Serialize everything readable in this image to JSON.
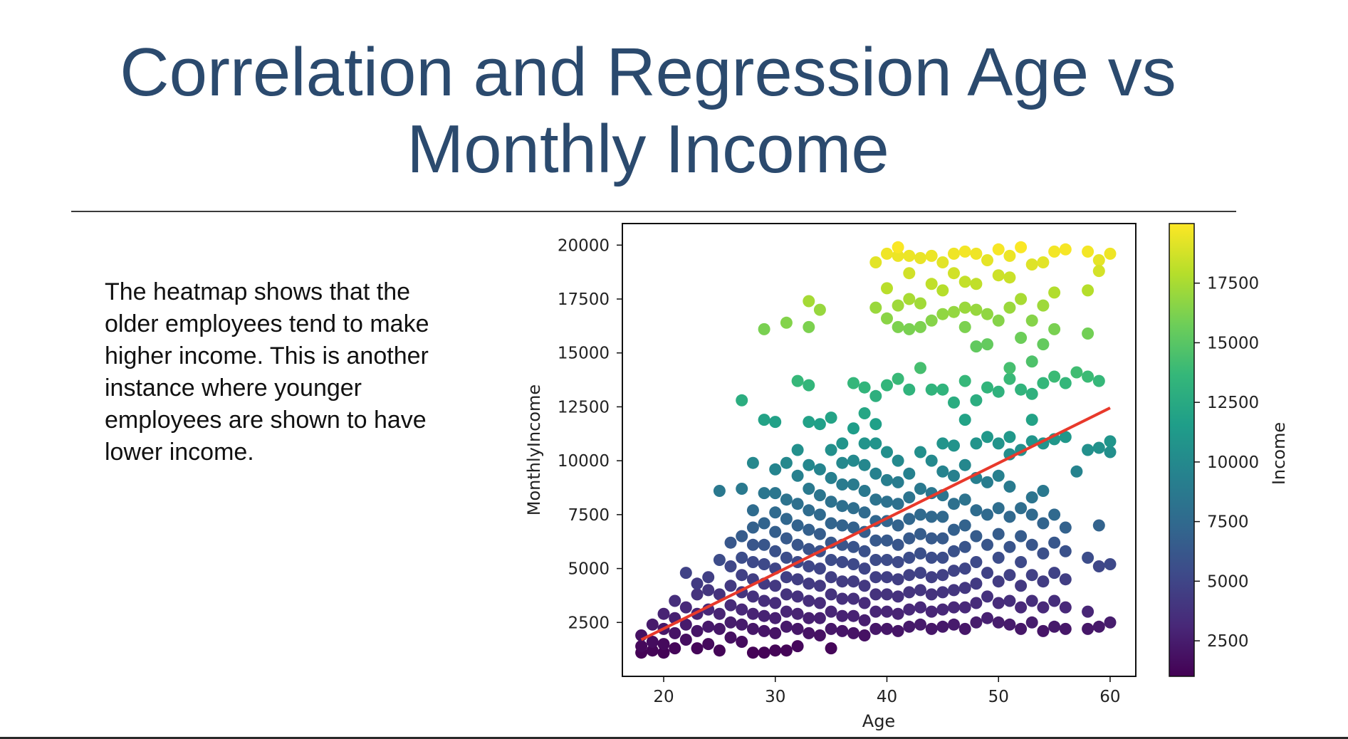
{
  "slide": {
    "title": "Correlation and Regression Age vs Monthly Income",
    "body": "The heatmap shows that the older employees tend to make higher income. This is another instance where younger employees are shown to have lower income."
  },
  "chart_data": {
    "type": "scatter",
    "xlabel": "Age",
    "ylabel": "MonthlyIncome",
    "colorbar_label": "Income",
    "xlim": [
      16.3,
      62.3
    ],
    "ylim": [
      0,
      21000
    ],
    "xticks": [
      20,
      30,
      40,
      50,
      60
    ],
    "yticks": [
      2500,
      5000,
      7500,
      10000,
      12500,
      15000,
      17500,
      20000
    ],
    "colorbar_range": [
      1009,
      19999
    ],
    "colorbar_ticks": [
      2500,
      5000,
      7500,
      10000,
      12500,
      15000,
      17500
    ],
    "colormap": "viridis",
    "colormap_stops": [
      "#440154",
      "#482878",
      "#3e4989",
      "#31688e",
      "#26828e",
      "#1f9e89",
      "#35b779",
      "#6ece58",
      "#b5de2b",
      "#fde725"
    ],
    "regression_line": {
      "x": [
        18,
        60
      ],
      "y": [
        1700,
        12450
      ],
      "color": "#e8392b"
    },
    "points": [
      [
        18,
        1100
      ],
      [
        18,
        1400
      ],
      [
        18,
        1900
      ],
      [
        19,
        1200
      ],
      [
        19,
        1600
      ],
      [
        19,
        2400
      ],
      [
        20,
        1100
      ],
      [
        20,
        1500
      ],
      [
        20,
        2200
      ],
      [
        20,
        2900
      ],
      [
        21,
        1300
      ],
      [
        21,
        2000
      ],
      [
        21,
        2700
      ],
      [
        21,
        3500
      ],
      [
        22,
        1700
      ],
      [
        22,
        2400
      ],
      [
        22,
        3200
      ],
      [
        22,
        4800
      ],
      [
        23,
        1300
      ],
      [
        23,
        2100
      ],
      [
        23,
        2900
      ],
      [
        23,
        3800
      ],
      [
        23,
        4300
      ],
      [
        24,
        1500
      ],
      [
        24,
        2300
      ],
      [
        24,
        3100
      ],
      [
        24,
        4000
      ],
      [
        24,
        4600
      ],
      [
        25,
        1200
      ],
      [
        25,
        2200
      ],
      [
        25,
        2900
      ],
      [
        25,
        3800
      ],
      [
        25,
        5400
      ],
      [
        25,
        8600
      ],
      [
        26,
        1800
      ],
      [
        26,
        2500
      ],
      [
        26,
        3300
      ],
      [
        26,
        4200
      ],
      [
        26,
        5100
      ],
      [
        26,
        6200
      ],
      [
        27,
        1600
      ],
      [
        27,
        2400
      ],
      [
        27,
        3100
      ],
      [
        27,
        3900
      ],
      [
        27,
        4700
      ],
      [
        27,
        5500
      ],
      [
        27,
        6500
      ],
      [
        27,
        8700
      ],
      [
        27,
        12800
      ],
      [
        28,
        1100
      ],
      [
        28,
        2200
      ],
      [
        28,
        2900
      ],
      [
        28,
        3700
      ],
      [
        28,
        4500
      ],
      [
        28,
        5300
      ],
      [
        28,
        6100
      ],
      [
        28,
        6900
      ],
      [
        28,
        7700
      ],
      [
        28,
        9900
      ],
      [
        29,
        1100
      ],
      [
        29,
        2100
      ],
      [
        29,
        2800
      ],
      [
        29,
        3500
      ],
      [
        29,
        4300
      ],
      [
        29,
        5200
      ],
      [
        29,
        6100
      ],
      [
        29,
        7100
      ],
      [
        29,
        8500
      ],
      [
        29,
        11900
      ],
      [
        29,
        16100
      ],
      [
        30,
        1200
      ],
      [
        30,
        2000
      ],
      [
        30,
        2700
      ],
      [
        30,
        3400
      ],
      [
        30,
        4200
      ],
      [
        30,
        5000
      ],
      [
        30,
        5800
      ],
      [
        30,
        6700
      ],
      [
        30,
        7600
      ],
      [
        30,
        8500
      ],
      [
        30,
        9600
      ],
      [
        30,
        11800
      ],
      [
        31,
        1200
      ],
      [
        31,
        2300
      ],
      [
        31,
        3000
      ],
      [
        31,
        3800
      ],
      [
        31,
        4600
      ],
      [
        31,
        5500
      ],
      [
        31,
        6400
      ],
      [
        31,
        7300
      ],
      [
        31,
        8200
      ],
      [
        31,
        9900
      ],
      [
        31,
        16400
      ],
      [
        32,
        1400
      ],
      [
        32,
        2200
      ],
      [
        32,
        2900
      ],
      [
        32,
        3700
      ],
      [
        32,
        4500
      ],
      [
        32,
        5300
      ],
      [
        32,
        6100
      ],
      [
        32,
        7000
      ],
      [
        32,
        8000
      ],
      [
        32,
        9300
      ],
      [
        32,
        10500
      ],
      [
        32,
        13700
      ],
      [
        33,
        2000
      ],
      [
        33,
        2700
      ],
      [
        33,
        3500
      ],
      [
        33,
        4300
      ],
      [
        33,
        5100
      ],
      [
        33,
        5900
      ],
      [
        33,
        6800
      ],
      [
        33,
        7700
      ],
      [
        33,
        8700
      ],
      [
        33,
        9800
      ],
      [
        33,
        11800
      ],
      [
        33,
        13500
      ],
      [
        33,
        16200
      ],
      [
        33,
        17400
      ],
      [
        34,
        1900
      ],
      [
        34,
        2700
      ],
      [
        34,
        3400
      ],
      [
        34,
        4200
      ],
      [
        34,
        5000
      ],
      [
        34,
        5800
      ],
      [
        34,
        6600
      ],
      [
        34,
        7500
      ],
      [
        34,
        8400
      ],
      [
        34,
        9600
      ],
      [
        34,
        11700
      ],
      [
        34,
        17000
      ],
      [
        35,
        1300
      ],
      [
        35,
        2200
      ],
      [
        35,
        3000
      ],
      [
        35,
        3800
      ],
      [
        35,
        4600
      ],
      [
        35,
        5400
      ],
      [
        35,
        6200
      ],
      [
        35,
        7100
      ],
      [
        35,
        8100
      ],
      [
        35,
        9200
      ],
      [
        35,
        10500
      ],
      [
        35,
        12000
      ],
      [
        36,
        2100
      ],
      [
        36,
        2800
      ],
      [
        36,
        3600
      ],
      [
        36,
        4400
      ],
      [
        36,
        5300
      ],
      [
        36,
        6100
      ],
      [
        36,
        7000
      ],
      [
        36,
        7900
      ],
      [
        36,
        8900
      ],
      [
        36,
        9900
      ],
      [
        36,
        10800
      ],
      [
        37,
        2000
      ],
      [
        37,
        2800
      ],
      [
        37,
        3600
      ],
      [
        37,
        4400
      ],
      [
        37,
        5200
      ],
      [
        37,
        6000
      ],
      [
        37,
        6900
      ],
      [
        37,
        7800
      ],
      [
        37,
        8900
      ],
      [
        37,
        10000
      ],
      [
        37,
        11500
      ],
      [
        37,
        13600
      ],
      [
        38,
        1900
      ],
      [
        38,
        2600
      ],
      [
        38,
        3400
      ],
      [
        38,
        4200
      ],
      [
        38,
        5000
      ],
      [
        38,
        5800
      ],
      [
        38,
        6700
      ],
      [
        38,
        7600
      ],
      [
        38,
        8600
      ],
      [
        38,
        9800
      ],
      [
        38,
        10800
      ],
      [
        38,
        12200
      ],
      [
        38,
        13400
      ],
      [
        39,
        2200
      ],
      [
        39,
        3000
      ],
      [
        39,
        3800
      ],
      [
        39,
        4600
      ],
      [
        39,
        5400
      ],
      [
        39,
        6300
      ],
      [
        39,
        7200
      ],
      [
        39,
        8200
      ],
      [
        39,
        9400
      ],
      [
        39,
        10800
      ],
      [
        39,
        11700
      ],
      [
        39,
        13000
      ],
      [
        39,
        17100
      ],
      [
        39,
        19200
      ],
      [
        40,
        2200
      ],
      [
        40,
        3000
      ],
      [
        40,
        3800
      ],
      [
        40,
        4600
      ],
      [
        40,
        5400
      ],
      [
        40,
        6300
      ],
      [
        40,
        7200
      ],
      [
        40,
        8100
      ],
      [
        40,
        9100
      ],
      [
        40,
        10400
      ],
      [
        40,
        13500
      ],
      [
        40,
        16600
      ],
      [
        40,
        18000
      ],
      [
        40,
        19600
      ],
      [
        41,
        2100
      ],
      [
        41,
        2900
      ],
      [
        41,
        3700
      ],
      [
        41,
        4500
      ],
      [
        41,
        5300
      ],
      [
        41,
        6100
      ],
      [
        41,
        7000
      ],
      [
        41,
        8000
      ],
      [
        41,
        9000
      ],
      [
        41,
        10000
      ],
      [
        41,
        13800
      ],
      [
        41,
        16200
      ],
      [
        41,
        17200
      ],
      [
        41,
        19500
      ],
      [
        41,
        19900
      ],
      [
        42,
        2300
      ],
      [
        42,
        3100
      ],
      [
        42,
        3900
      ],
      [
        42,
        4700
      ],
      [
        42,
        5500
      ],
      [
        42,
        6400
      ],
      [
        42,
        7300
      ],
      [
        42,
        8300
      ],
      [
        42,
        9400
      ],
      [
        42,
        13300
      ],
      [
        42,
        16100
      ],
      [
        42,
        17500
      ],
      [
        42,
        18700
      ],
      [
        42,
        19500
      ],
      [
        43,
        2400
      ],
      [
        43,
        3200
      ],
      [
        43,
        4000
      ],
      [
        43,
        4800
      ],
      [
        43,
        5700
      ],
      [
        43,
        6600
      ],
      [
        43,
        7500
      ],
      [
        43,
        8700
      ],
      [
        43,
        10400
      ],
      [
        43,
        14300
      ],
      [
        43,
        16200
      ],
      [
        43,
        17300
      ],
      [
        43,
        19400
      ],
      [
        44,
        2200
      ],
      [
        44,
        3000
      ],
      [
        44,
        3800
      ],
      [
        44,
        4600
      ],
      [
        44,
        5500
      ],
      [
        44,
        6400
      ],
      [
        44,
        7400
      ],
      [
        44,
        8500
      ],
      [
        44,
        10000
      ],
      [
        44,
        13300
      ],
      [
        44,
        16500
      ],
      [
        44,
        18200
      ],
      [
        44,
        19500
      ],
      [
        45,
        2300
      ],
      [
        45,
        3100
      ],
      [
        45,
        3900
      ],
      [
        45,
        4700
      ],
      [
        45,
        5500
      ],
      [
        45,
        6400
      ],
      [
        45,
        7400
      ],
      [
        45,
        8400
      ],
      [
        45,
        9500
      ],
      [
        45,
        10800
      ],
      [
        45,
        13300
      ],
      [
        45,
        16800
      ],
      [
        45,
        17900
      ],
      [
        45,
        19200
      ],
      [
        46,
        2400
      ],
      [
        46,
        3200
      ],
      [
        46,
        4000
      ],
      [
        46,
        4900
      ],
      [
        46,
        5800
      ],
      [
        46,
        6800
      ],
      [
        46,
        8000
      ],
      [
        46,
        9300
      ],
      [
        46,
        10700
      ],
      [
        46,
        12700
      ],
      [
        46,
        16900
      ],
      [
        46,
        18700
      ],
      [
        46,
        19600
      ],
      [
        47,
        2200
      ],
      [
        47,
        3200
      ],
      [
        47,
        4100
      ],
      [
        47,
        5000
      ],
      [
        47,
        6000
      ],
      [
        47,
        7000
      ],
      [
        47,
        8200
      ],
      [
        47,
        9800
      ],
      [
        47,
        11900
      ],
      [
        47,
        13700
      ],
      [
        47,
        16200
      ],
      [
        47,
        17100
      ],
      [
        47,
        18300
      ],
      [
        47,
        19700
      ],
      [
        48,
        2500
      ],
      [
        48,
        3400
      ],
      [
        48,
        4300
      ],
      [
        48,
        5300
      ],
      [
        48,
        6500
      ],
      [
        48,
        7700
      ],
      [
        48,
        9200
      ],
      [
        48,
        10800
      ],
      [
        48,
        12800
      ],
      [
        48,
        15300
      ],
      [
        48,
        17000
      ],
      [
        48,
        18200
      ],
      [
        48,
        19600
      ],
      [
        49,
        2700
      ],
      [
        49,
        3700
      ],
      [
        49,
        4800
      ],
      [
        49,
        6100
      ],
      [
        49,
        7500
      ],
      [
        49,
        9000
      ],
      [
        49,
        11100
      ],
      [
        49,
        13400
      ],
      [
        49,
        15400
      ],
      [
        49,
        16800
      ],
      [
        49,
        19300
      ],
      [
        50,
        2500
      ],
      [
        50,
        3400
      ],
      [
        50,
        4400
      ],
      [
        50,
        5500
      ],
      [
        50,
        6600
      ],
      [
        50,
        7800
      ],
      [
        50,
        9300
      ],
      [
        50,
        10800
      ],
      [
        50,
        13200
      ],
      [
        50,
        16500
      ],
      [
        50,
        18600
      ],
      [
        50,
        19800
      ],
      [
        51,
        2400
      ],
      [
        51,
        3500
      ],
      [
        51,
        4700
      ],
      [
        51,
        6000
      ],
      [
        51,
        7400
      ],
      [
        51,
        8800
      ],
      [
        51,
        10300
      ],
      [
        51,
        11100
      ],
      [
        51,
        13800
      ],
      [
        51,
        14300
      ],
      [
        51,
        17100
      ],
      [
        51,
        18500
      ],
      [
        51,
        19500
      ],
      [
        52,
        2200
      ],
      [
        52,
        3200
      ],
      [
        52,
        4200
      ],
      [
        52,
        5300
      ],
      [
        52,
        6500
      ],
      [
        52,
        7800
      ],
      [
        52,
        10500
      ],
      [
        52,
        13300
      ],
      [
        52,
        15700
      ],
      [
        52,
        17500
      ],
      [
        52,
        19900
      ],
      [
        53,
        2500
      ],
      [
        53,
        3500
      ],
      [
        53,
        4700
      ],
      [
        53,
        6100
      ],
      [
        53,
        7500
      ],
      [
        53,
        8300
      ],
      [
        53,
        10900
      ],
      [
        53,
        11900
      ],
      [
        53,
        13100
      ],
      [
        53,
        14600
      ],
      [
        53,
        16500
      ],
      [
        53,
        19100
      ],
      [
        54,
        2100
      ],
      [
        54,
        3200
      ],
      [
        54,
        4400
      ],
      [
        54,
        5700
      ],
      [
        54,
        7100
      ],
      [
        54,
        8600
      ],
      [
        54,
        10800
      ],
      [
        54,
        13600
      ],
      [
        54,
        15400
      ],
      [
        54,
        17200
      ],
      [
        54,
        19200
      ],
      [
        55,
        2300
      ],
      [
        55,
        3500
      ],
      [
        55,
        4800
      ],
      [
        55,
        6200
      ],
      [
        55,
        7500
      ],
      [
        55,
        11000
      ],
      [
        55,
        13900
      ],
      [
        55,
        16100
      ],
      [
        55,
        17800
      ],
      [
        55,
        19700
      ],
      [
        56,
        2200
      ],
      [
        56,
        3200
      ],
      [
        56,
        4500
      ],
      [
        56,
        5800
      ],
      [
        56,
        6900
      ],
      [
        56,
        11100
      ],
      [
        56,
        13600
      ],
      [
        56,
        19800
      ],
      [
        57,
        9500
      ],
      [
        57,
        14100
      ],
      [
        58,
        2200
      ],
      [
        58,
        3000
      ],
      [
        58,
        5500
      ],
      [
        58,
        10500
      ],
      [
        58,
        13900
      ],
      [
        58,
        15900
      ],
      [
        58,
        17900
      ],
      [
        58,
        19700
      ],
      [
        59,
        2300
      ],
      [
        59,
        5100
      ],
      [
        59,
        7000
      ],
      [
        59,
        10600
      ],
      [
        59,
        13700
      ],
      [
        59,
        19300
      ],
      [
        59,
        18800
      ],
      [
        60,
        2500
      ],
      [
        60,
        5200
      ],
      [
        60,
        10400
      ],
      [
        60,
        10900
      ],
      [
        60,
        19600
      ]
    ]
  }
}
